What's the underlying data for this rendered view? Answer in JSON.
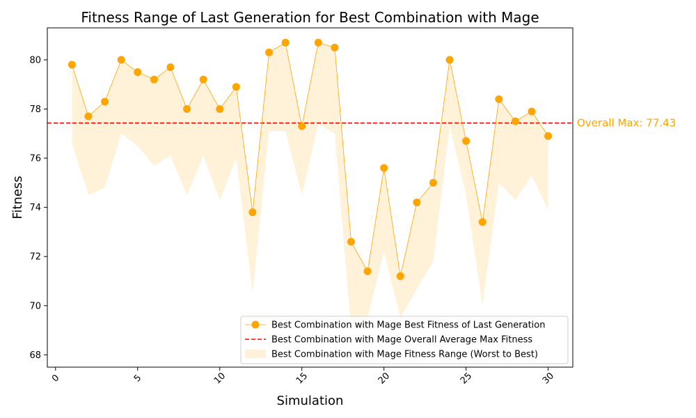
{
  "chart_data": {
    "type": "line",
    "title": "Fitness Range of Last Generation for Best Combination with Mage",
    "xlabel": "Simulation",
    "ylabel": "Fitness",
    "xlim": [
      -0.5,
      31.5
    ],
    "ylim": [
      67.5,
      81.3
    ],
    "xticks": [
      0,
      5,
      10,
      15,
      20,
      25,
      30
    ],
    "yticks": [
      68,
      70,
      72,
      74,
      76,
      78,
      80
    ],
    "grid": false,
    "legend_position": "lower-right",
    "x": [
      1,
      2,
      3,
      4,
      5,
      6,
      7,
      8,
      9,
      10,
      11,
      12,
      13,
      14,
      15,
      16,
      17,
      18,
      19,
      20,
      21,
      22,
      23,
      24,
      25,
      26,
      27,
      28,
      29,
      30
    ],
    "series": [
      {
        "name": "Best Combination with Mage Best Fitness of Last Generation",
        "kind": "line-marker",
        "color": "#FFA500",
        "values": [
          79.8,
          77.7,
          78.3,
          80.0,
          79.5,
          79.2,
          79.7,
          78.0,
          79.2,
          78.0,
          78.9,
          73.8,
          80.3,
          80.7,
          77.3,
          80.7,
          80.5,
          72.6,
          71.4,
          75.6,
          71.2,
          74.2,
          75.0,
          80.0,
          76.7,
          73.4,
          78.4,
          77.5,
          77.9,
          76.9
        ]
      },
      {
        "name": "Best Combination with Mage Overall Average Max Fitness",
        "kind": "hline",
        "color": "#FF0000",
        "value": 77.43
      },
      {
        "name": "Best Combination with Mage Fitness Range (Worst to Best)",
        "kind": "band",
        "color": "#FFA500",
        "lower": [
          76.6,
          74.5,
          74.8,
          77.0,
          76.5,
          75.7,
          76.1,
          74.5,
          76.1,
          74.3,
          76.0,
          70.5,
          77.1,
          77.1,
          74.5,
          77.4,
          77.0,
          69.0,
          69.5,
          72.2,
          69.5,
          70.7,
          71.8,
          77.3,
          74.5,
          70.0,
          75.0,
          74.3,
          75.3,
          73.9
        ],
        "upper": [
          79.8,
          77.7,
          78.3,
          80.0,
          79.5,
          79.2,
          79.7,
          78.0,
          79.2,
          78.0,
          78.9,
          73.8,
          80.3,
          80.7,
          77.3,
          80.7,
          80.5,
          72.6,
          71.4,
          75.6,
          71.2,
          74.2,
          75.0,
          80.0,
          76.7,
          73.4,
          78.4,
          77.5,
          77.9,
          76.9
        ]
      }
    ],
    "annotation": {
      "text": "Overall Max: 77.43",
      "color": "#FFA500"
    }
  }
}
